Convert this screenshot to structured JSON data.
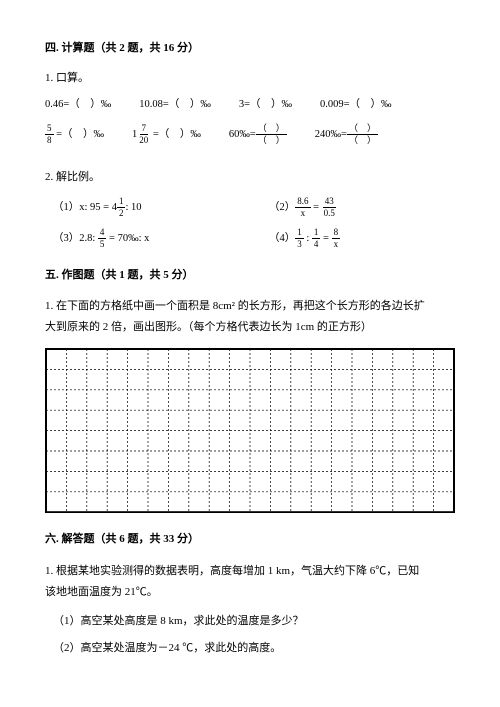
{
  "section4": {
    "title": "四. 计算题（共 2 题，共 16 分）",
    "q1": {
      "label": "1. 口算。",
      "row1": {
        "a": "0.46=（　）‰",
        "b": "10.08=（　）‰",
        "c": "3=（　）‰",
        "d": "0.009=（　）‰"
      },
      "row2": {
        "a_pre": "",
        "a_num": "5",
        "a_den": "8",
        "a_post": " =（　）‰",
        "b_pre": "1",
        "b_num": "7",
        "b_den": "20",
        "b_post": " =（　）‰",
        "c_pre": "60‰=",
        "c_top": "（　）",
        "c_bot": "（　）",
        "d_pre": "240‰=",
        "d_top": "（　）",
        "d_bot": "（　）"
      }
    },
    "q2": {
      "label": "2. 解比例。",
      "items": {
        "i1_pre": "（1）x: 95 = 4",
        "i1_num": "1",
        "i1_den": "2",
        "i1_post": ": 10",
        "i2_pre": "（2）",
        "i2_a_num": "8.6",
        "i2_a_den": "x",
        "i2_eq": " = ",
        "i2_b_num": "43",
        "i2_b_den": "0.5",
        "i3_pre": "（3）2.8: ",
        "i3_num": "4",
        "i3_den": "5",
        "i3_post": " = 70‰: x",
        "i4_pre": "（4）",
        "i4_a_num": "1",
        "i4_a_den": "3",
        "i4_mid": " : ",
        "i4_b_num": "1",
        "i4_b_den": "4",
        "i4_eq": " = ",
        "i4_c_num": "8",
        "i4_c_den": "x"
      }
    }
  },
  "section5": {
    "title": "五. 作图题（共 1 题，共 5 分）",
    "q1": {
      "line1": "1. 在下面的方格纸中画一个面积是 8cm² 的长方形，再把这个长方形的各边长扩",
      "line2": "大到原来的 2 倍，画出图形。（每个方格代表边长为 1cm 的正方形）"
    },
    "grid": {
      "cols": 20,
      "rows": 8,
      "cell_size": 20.4,
      "border_color": "#000000",
      "border_width": 2,
      "inner_line_color": "#000000",
      "inner_dash": "2,2",
      "inner_width": 0.7
    }
  },
  "section6": {
    "title": "六. 解答题（共 6 题，共 33 分）",
    "q1": {
      "line1": "1. 根据某地实验测得的数据表明，高度每增加 1 km，气温大约下降 6℃，已知",
      "line2": "该地地面温度为 21℃。",
      "sub1": "（1）高空某处高度是 8 km，求此处的温度是多少？",
      "sub2": "（2）高空某处温度为－24 ℃，求此处的高度。"
    }
  }
}
